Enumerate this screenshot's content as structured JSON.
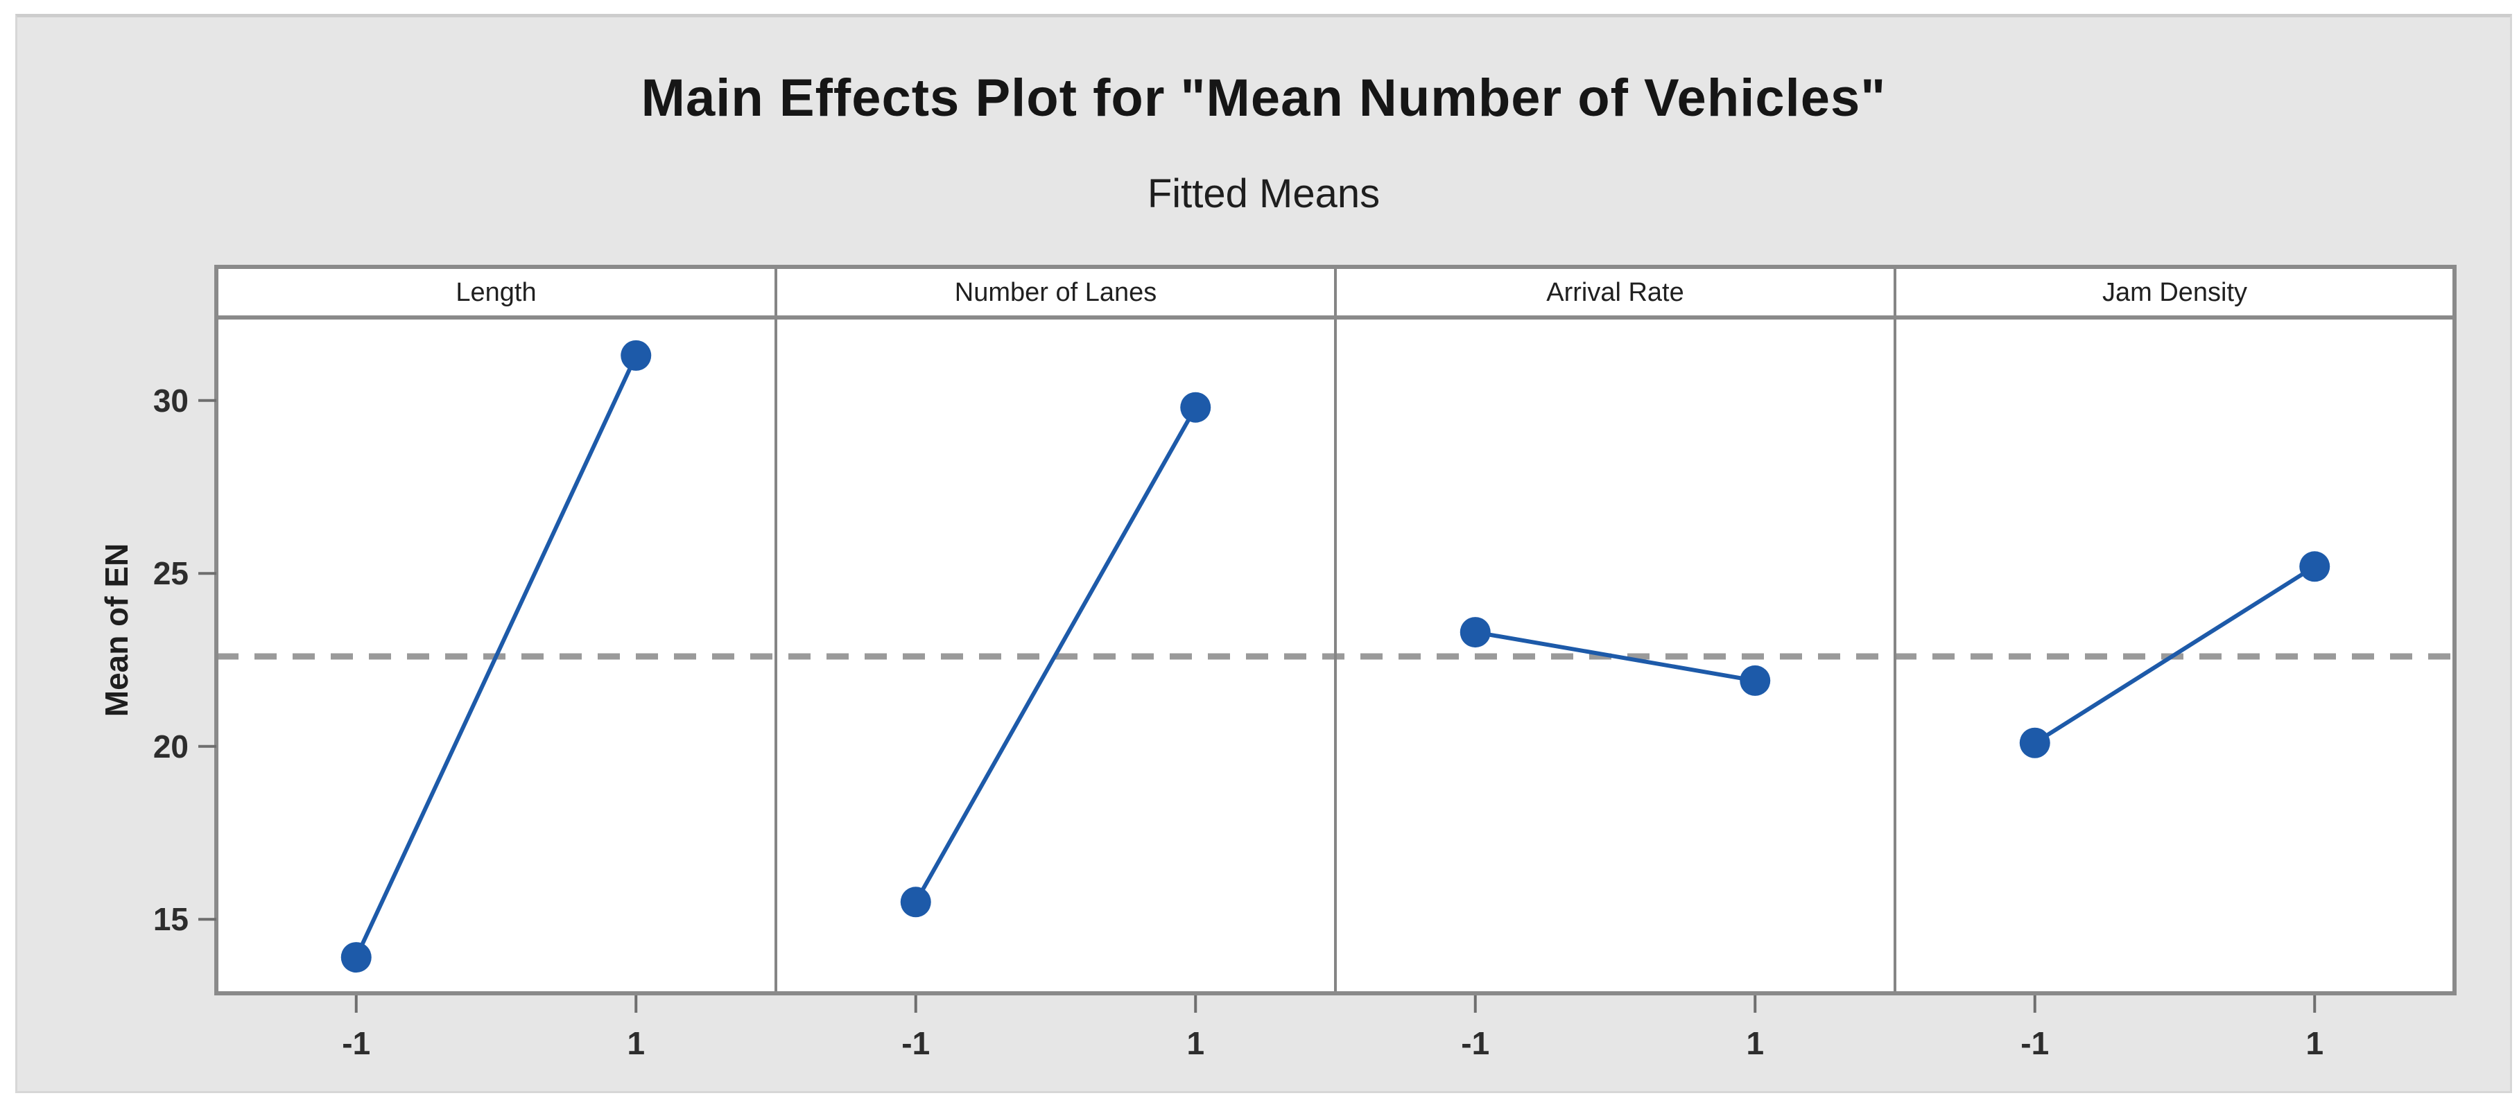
{
  "figure": {
    "background_color": "#e6e6e6",
    "plot_background_color": "#ffffff",
    "frame_color": "#8a8a8a",
    "text_color": "#1e1e1e"
  },
  "chart_data": {
    "type": "line",
    "title": "Main Effects Plot for \"Mean Number of Vehicles\"",
    "subtitle": "Fitted Means",
    "ylabel": "Mean of EN",
    "xlabel": "",
    "ylim": [
      12.86,
      32.4
    ],
    "yticks": [
      15,
      20,
      25,
      30
    ],
    "x_categories": [
      "-1",
      "1"
    ],
    "grid": "off",
    "legend": "none",
    "series_color": "#1d5aa9",
    "marker": "filled-circle",
    "reference_line": {
      "value": 22.6,
      "style": "dashed",
      "color": "#9a9a9a"
    },
    "panels": [
      {
        "label": "Length",
        "categories": [
          "-1",
          "1"
        ],
        "values": [
          13.9,
          31.3
        ]
      },
      {
        "label": "Number of Lanes",
        "categories": [
          "-1",
          "1"
        ],
        "values": [
          15.5,
          29.8
        ]
      },
      {
        "label": "Arrival Rate",
        "categories": [
          "-1",
          "1"
        ],
        "values": [
          23.3,
          21.9
        ]
      },
      {
        "label": "Jam Density",
        "categories": [
          "-1",
          "1"
        ],
        "values": [
          20.1,
          25.2
        ]
      }
    ]
  }
}
